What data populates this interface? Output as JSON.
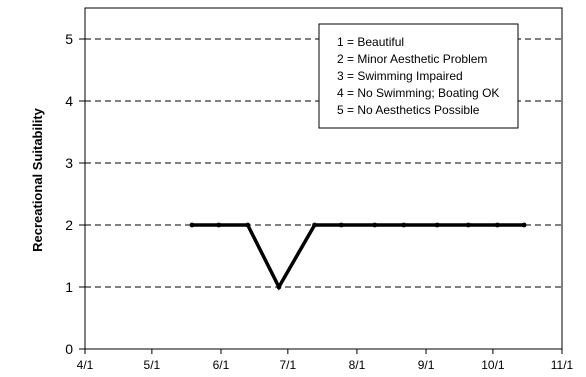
{
  "chart_data": {
    "type": "line",
    "title": "",
    "xlabel": "",
    "ylabel": "Recreational Suitability",
    "ylim": [
      0,
      5.5
    ],
    "y_ticks": [
      "0",
      "1",
      "2",
      "3",
      "4",
      "5"
    ],
    "x_ticks": [
      "4/1",
      "5/1",
      "6/1",
      "7/1",
      "8/1",
      "9/1",
      "10/1",
      "11/1"
    ],
    "xlim": [
      "2004-04-01",
      "2004-11-01"
    ],
    "grid": "horizontal dashed",
    "legend_position": "top-right",
    "legend_items": [
      "1 = Beautiful",
      "2 = Minor Aesthetic Problem",
      "3 = Swimming Impaired",
      "4 = No Swimming; Boating OK",
      "5 = No Aesthetics Possible"
    ],
    "series": [
      {
        "points": [
          {
            "x": "2004-05-19",
            "y": 2
          },
          {
            "x": "2004-05-31",
            "y": 2
          },
          {
            "x": "2004-06-13",
            "y": 2
          },
          {
            "x": "2004-06-27",
            "y": 1
          },
          {
            "x": "2004-07-13",
            "y": 2
          },
          {
            "x": "2004-07-25",
            "y": 2
          },
          {
            "x": "2004-08-09",
            "y": 2
          },
          {
            "x": "2004-08-22",
            "y": 2
          },
          {
            "x": "2004-09-06",
            "y": 2
          },
          {
            "x": "2004-09-20",
            "y": 2
          },
          {
            "x": "2004-10-03",
            "y": 2
          },
          {
            "x": "2004-10-15",
            "y": 2
          }
        ]
      }
    ]
  }
}
